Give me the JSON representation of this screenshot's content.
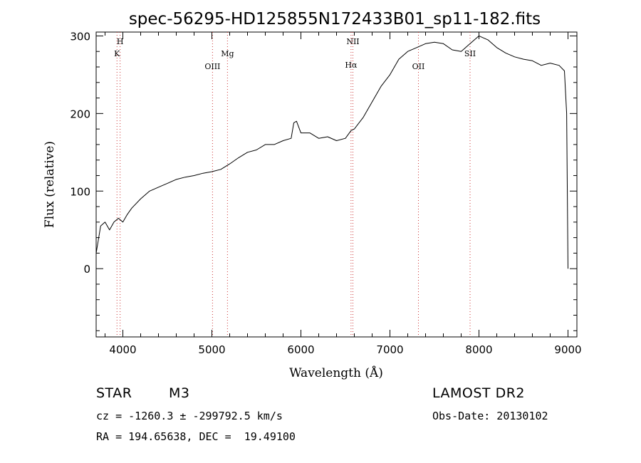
{
  "chart_data": {
    "type": "line",
    "title": "spec-56295-HD125855N172433B01_sp11-182.fits",
    "xlabel": "Wavelength (Å)",
    "ylabel": "Flux (relative)",
    "xlim": [
      3700,
      9100
    ],
    "ylim": [
      -88,
      305
    ],
    "x_ticks": [
      4000,
      5000,
      6000,
      7000,
      8000,
      9000
    ],
    "y_ticks": [
      0,
      100,
      200,
      300
    ],
    "grid": false,
    "line_color": "#000000",
    "marker_color": "#cc3333",
    "series": [
      {
        "x": [
          3700,
          3750,
          3800,
          3850,
          3900,
          3950,
          4000,
          4050,
          4100,
          4200,
          4300,
          4400,
          4500,
          4600,
          4700,
          4800,
          4900,
          5000,
          5100,
          5200,
          5300,
          5400,
          5500,
          5600,
          5700,
          5800,
          5890,
          5920,
          5950,
          6000,
          6100,
          6200,
          6300,
          6400,
          6500,
          6563,
          6600,
          6700,
          6800,
          6900,
          7000,
          7100,
          7200,
          7300,
          7400,
          7500,
          7600,
          7700,
          7800,
          7900,
          8000,
          8100,
          8200,
          8300,
          8400,
          8500,
          8600,
          8700,
          8800,
          8900,
          8960,
          8985,
          9000
        ],
        "y": [
          20,
          55,
          60,
          50,
          60,
          65,
          60,
          70,
          78,
          90,
          100,
          105,
          110,
          115,
          118,
          120,
          123,
          125,
          128,
          135,
          143,
          150,
          153,
          160,
          160,
          165,
          168,
          188,
          190,
          175,
          175,
          168,
          170,
          165,
          168,
          178,
          180,
          195,
          215,
          235,
          250,
          270,
          280,
          285,
          290,
          292,
          290,
          282,
          280,
          290,
          300,
          295,
          285,
          278,
          273,
          270,
          268,
          262,
          265,
          262,
          255,
          200,
          0
        ]
      }
    ],
    "lines": [
      {
        "label": "K",
        "x": 3934
      },
      {
        "label": "H",
        "x": 3969
      },
      {
        "label": "OIII",
        "x": 5007
      },
      {
        "label": "Mg",
        "x": 5175
      },
      {
        "label": "Hα",
        "x": 6563
      },
      {
        "label": "NII",
        "x": 6584
      },
      {
        "label": "OII",
        "x": 7320
      },
      {
        "label": "SII",
        "x": 7900
      }
    ]
  },
  "info": {
    "class": "STAR",
    "subclass": "M3",
    "survey": "LAMOST DR2",
    "cz": "cz = -1260.3 ± -299792.5 km/s",
    "obs_date": "Obs-Date: 20130102",
    "radec": "RA = 194.65638, DEC =  19.49100"
  }
}
